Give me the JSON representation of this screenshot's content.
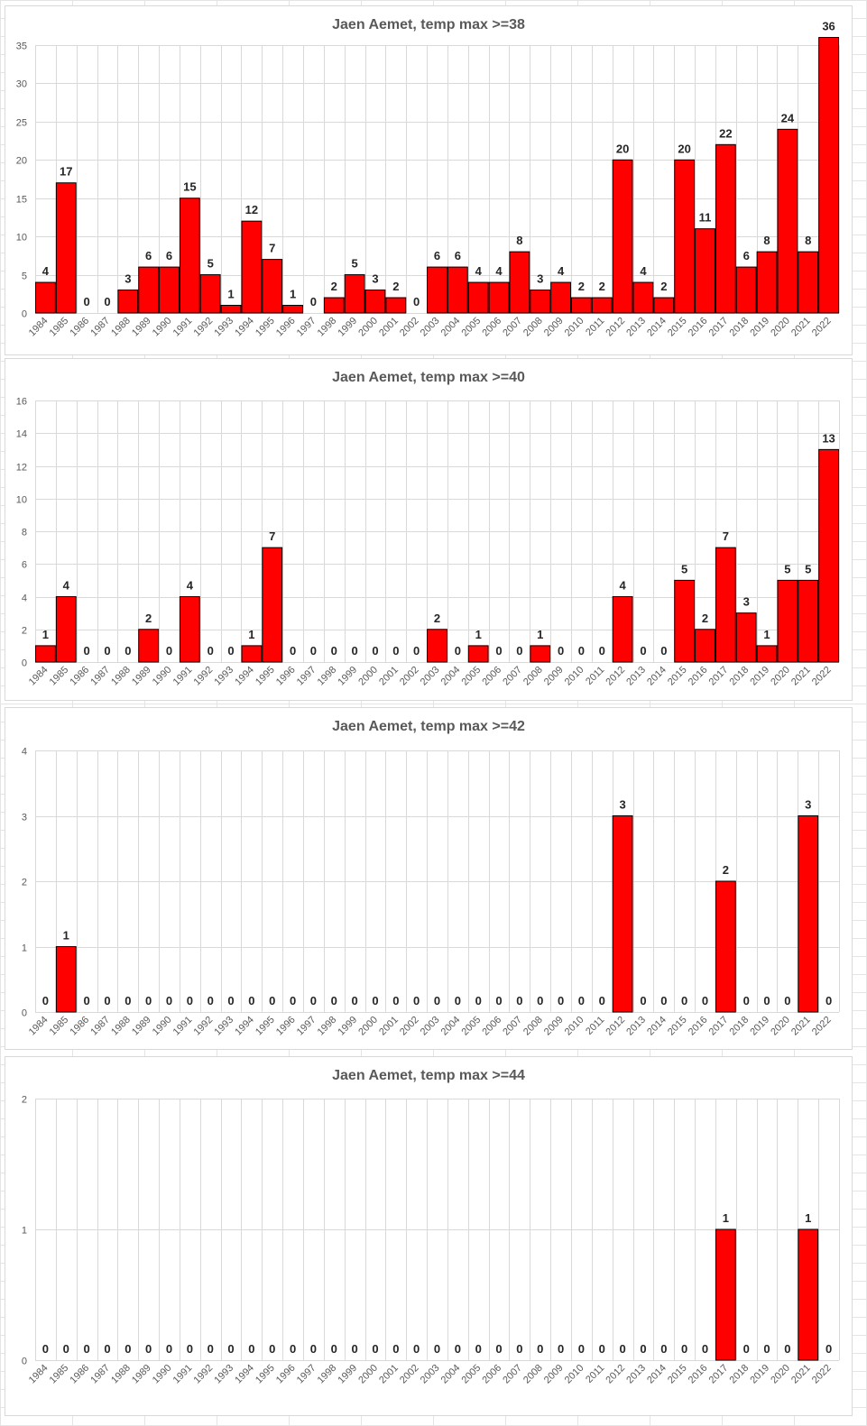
{
  "chart_data": [
    {
      "type": "bar",
      "title": "Jaen Aemet, temp max >=38",
      "categories": [
        "1984",
        "1985",
        "1986",
        "1987",
        "1988",
        "1989",
        "1990",
        "1991",
        "1992",
        "1993",
        "1994",
        "1995",
        "1996",
        "1997",
        "1998",
        "1999",
        "2000",
        "2001",
        "2002",
        "2003",
        "2004",
        "2005",
        "2006",
        "2007",
        "2008",
        "2009",
        "2010",
        "2011",
        "2012",
        "2013",
        "2014",
        "2015",
        "2016",
        "2017",
        "2018",
        "2019",
        "2020",
        "2021",
        "2022"
      ],
      "values": [
        4,
        17,
        0,
        0,
        3,
        6,
        6,
        15,
        5,
        1,
        12,
        7,
        1,
        0,
        2,
        5,
        3,
        2,
        0,
        6,
        6,
        4,
        4,
        8,
        3,
        4,
        2,
        2,
        20,
        4,
        2,
        20,
        11,
        22,
        6,
        8,
        24,
        8,
        36
      ],
      "ylim": [
        0,
        35
      ],
      "yticks": [
        0,
        5,
        10,
        15,
        20,
        25,
        30,
        35
      ],
      "bar_color": "#ff0000",
      "grid": true
    },
    {
      "type": "bar",
      "title": "Jaen Aemet, temp max >=40",
      "categories": [
        "1984",
        "1985",
        "1986",
        "1987",
        "1988",
        "1989",
        "1990",
        "1991",
        "1992",
        "1993",
        "1994",
        "1995",
        "1996",
        "1997",
        "1998",
        "1999",
        "2000",
        "2001",
        "2002",
        "2003",
        "2004",
        "2005",
        "2006",
        "2007",
        "2008",
        "2009",
        "2010",
        "2011",
        "2012",
        "2013",
        "2014",
        "2015",
        "2016",
        "2017",
        "2018",
        "2019",
        "2020",
        "2021",
        "2022"
      ],
      "values": [
        1,
        4,
        0,
        0,
        0,
        2,
        0,
        4,
        0,
        0,
        1,
        7,
        0,
        0,
        0,
        0,
        0,
        0,
        0,
        2,
        0,
        1,
        0,
        0,
        1,
        0,
        0,
        0,
        4,
        0,
        0,
        5,
        2,
        7,
        3,
        1,
        5,
        5,
        13
      ],
      "ylim": [
        0,
        16
      ],
      "yticks": [
        0,
        2,
        4,
        6,
        8,
        10,
        12,
        14,
        16
      ],
      "bar_color": "#ff0000",
      "grid": true
    },
    {
      "type": "bar",
      "title": "Jaen Aemet, temp max >=42",
      "categories": [
        "1984",
        "1985",
        "1986",
        "1987",
        "1988",
        "1989",
        "1990",
        "1991",
        "1992",
        "1993",
        "1994",
        "1995",
        "1996",
        "1997",
        "1998",
        "1999",
        "2000",
        "2001",
        "2002",
        "2003",
        "2004",
        "2005",
        "2006",
        "2007",
        "2008",
        "2009",
        "2010",
        "2011",
        "2012",
        "2013",
        "2014",
        "2015",
        "2016",
        "2017",
        "2018",
        "2019",
        "2020",
        "2021",
        "2022"
      ],
      "values": [
        0,
        1,
        0,
        0,
        0,
        0,
        0,
        0,
        0,
        0,
        0,
        0,
        0,
        0,
        0,
        0,
        0,
        0,
        0,
        0,
        0,
        0,
        0,
        0,
        0,
        0,
        0,
        0,
        3,
        0,
        0,
        0,
        0,
        2,
        0,
        0,
        0,
        3,
        0
      ],
      "ylim": [
        0,
        4
      ],
      "yticks": [
        0,
        1,
        2,
        3,
        4
      ],
      "bar_color": "#ff0000",
      "grid": true
    },
    {
      "type": "bar",
      "title": "Jaen Aemet, temp max >=44",
      "categories": [
        "1984",
        "1985",
        "1986",
        "1987",
        "1988",
        "1989",
        "1990",
        "1991",
        "1992",
        "1993",
        "1994",
        "1995",
        "1996",
        "1997",
        "1998",
        "1999",
        "2000",
        "2001",
        "2002",
        "2003",
        "2004",
        "2005",
        "2006",
        "2007",
        "2008",
        "2009",
        "2010",
        "2011",
        "2012",
        "2013",
        "2014",
        "2015",
        "2016",
        "2017",
        "2018",
        "2019",
        "2020",
        "2021",
        "2022"
      ],
      "values": [
        0,
        0,
        0,
        0,
        0,
        0,
        0,
        0,
        0,
        0,
        0,
        0,
        0,
        0,
        0,
        0,
        0,
        0,
        0,
        0,
        0,
        0,
        0,
        0,
        0,
        0,
        0,
        0,
        0,
        0,
        0,
        0,
        0,
        1,
        0,
        0,
        0,
        1,
        0
      ],
      "ylim": [
        0,
        2
      ],
      "yticks": [
        0,
        1,
        2
      ],
      "bar_color": "#ff0000",
      "grid": true
    }
  ]
}
